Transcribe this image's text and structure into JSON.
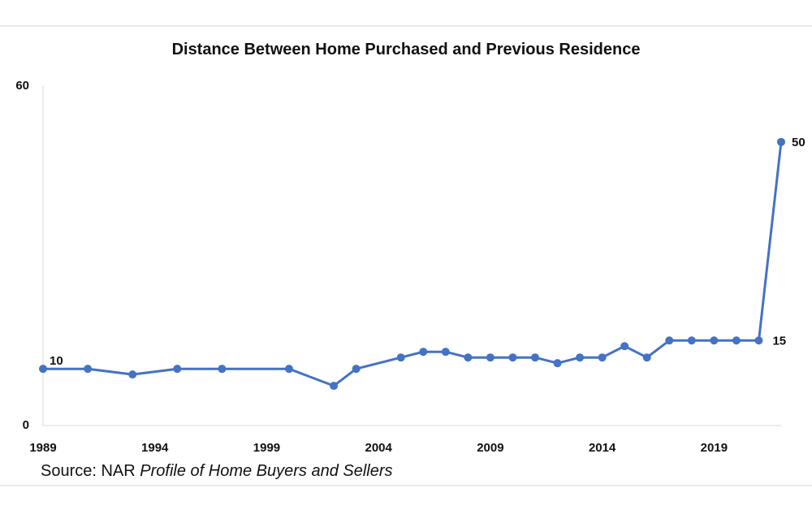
{
  "chart_data": {
    "type": "line",
    "title": "Distance Between Home Purchased and Previous Residence",
    "source_prefix": "Source: NAR ",
    "source_title": "Profile of Home Buyers and Sellers",
    "ylim": [
      0,
      60
    ],
    "xlim": [
      1989,
      2022
    ],
    "y_ticks": [
      "0",
      "60"
    ],
    "x_ticks": [
      1989,
      1994,
      1999,
      2004,
      2009,
      2014,
      2019
    ],
    "color": "#4472C4",
    "grid": false,
    "legend": "none",
    "series": [
      {
        "x": [
          1989,
          1991,
          1993,
          1995,
          1997,
          2000,
          2002,
          2003,
          2005,
          2006,
          2007,
          2008,
          2009,
          2010,
          2011,
          2012,
          2013,
          2014,
          2015,
          2016,
          2017,
          2018,
          2019,
          2020,
          2021,
          2022
        ],
        "values": [
          10,
          10,
          9,
          10,
          10,
          10,
          7,
          10,
          12,
          13,
          13,
          12,
          12,
          12,
          12,
          11,
          12,
          12,
          14,
          12,
          15,
          15,
          15,
          15,
          15,
          50
        ]
      }
    ],
    "data_labels": [
      {
        "x": 1989,
        "text": "10"
      },
      {
        "x": 2021,
        "text": "15"
      },
      {
        "x": 2022,
        "text": "50"
      }
    ]
  }
}
